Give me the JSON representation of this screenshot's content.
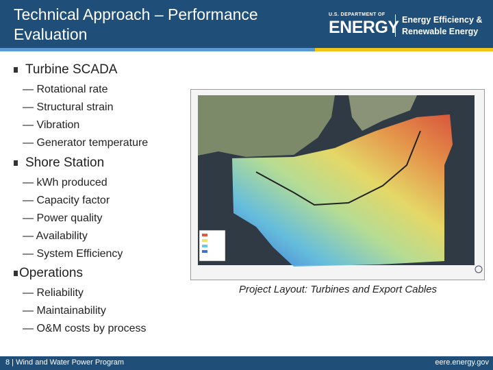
{
  "header": {
    "title": "Technical Approach – Performance\nEvaluation",
    "logo": {
      "dept_small": "U.S. DEPARTMENT OF",
      "dept_big": "ENERGY",
      "right_line1": "Energy Efficiency &",
      "right_line2": "Renewable Energy"
    }
  },
  "sections": [
    {
      "heading": "Turbine SCADA",
      "items": [
        "— Rotational rate",
        "— Structural strain",
        "— Vibration",
        "— Generator temperature"
      ]
    },
    {
      "heading": "Shore Station",
      "items": [
        "— kWh produced",
        "— Capacity factor",
        "— Power quality",
        "— Availability",
        "— System Efficiency"
      ]
    },
    {
      "heading": "Operations",
      "items": [
        "— Reliability",
        "— Maintainability",
        "— O&M costs by process"
      ]
    }
  ],
  "figure": {
    "caption": "Project Layout: Turbines and Export Cables"
  },
  "footer": {
    "left": "8 | Wind and Water Power Program",
    "right": "eere.energy.gov"
  },
  "colors": {
    "header_bg": "#1f4e79",
    "accent_blue": "#5a9bd5",
    "accent_gold": "#f0c419"
  }
}
